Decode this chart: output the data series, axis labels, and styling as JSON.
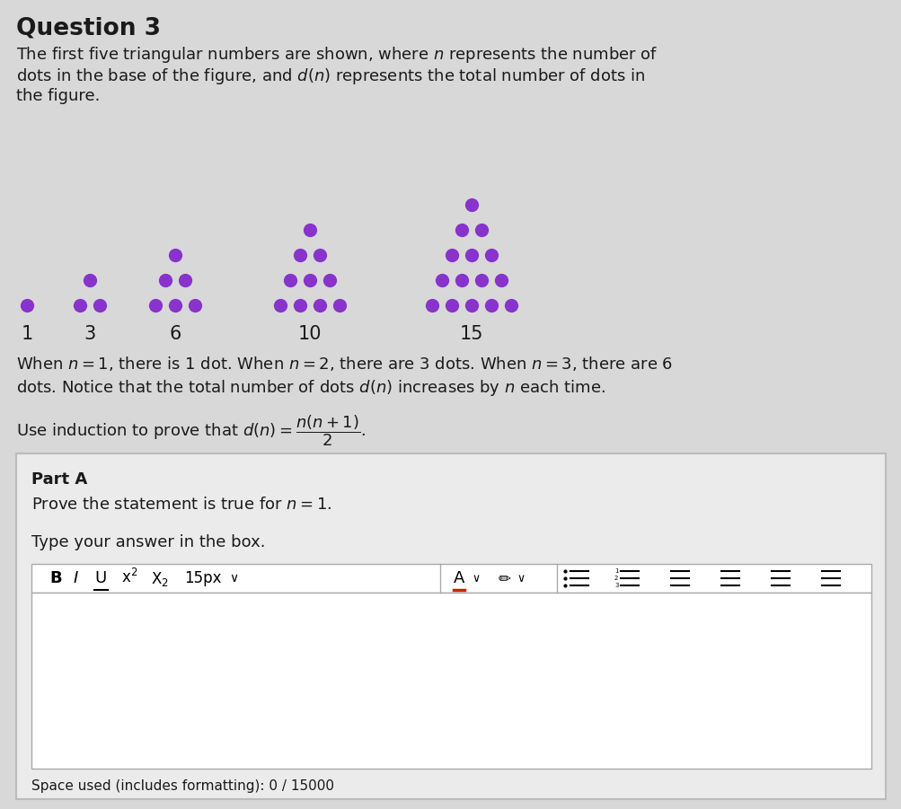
{
  "bg_color": "#d8d8d8",
  "panel_color": "#e8e8e8",
  "white_color": "#ffffff",
  "text_color": "#1a1a1a",
  "dot_color": "#8833cc",
  "title": "Question 3",
  "triangle_labels": [
    "1",
    "3",
    "6",
    "10",
    "15"
  ],
  "figsize": [
    10.04,
    9.01
  ],
  "dpi": 100
}
